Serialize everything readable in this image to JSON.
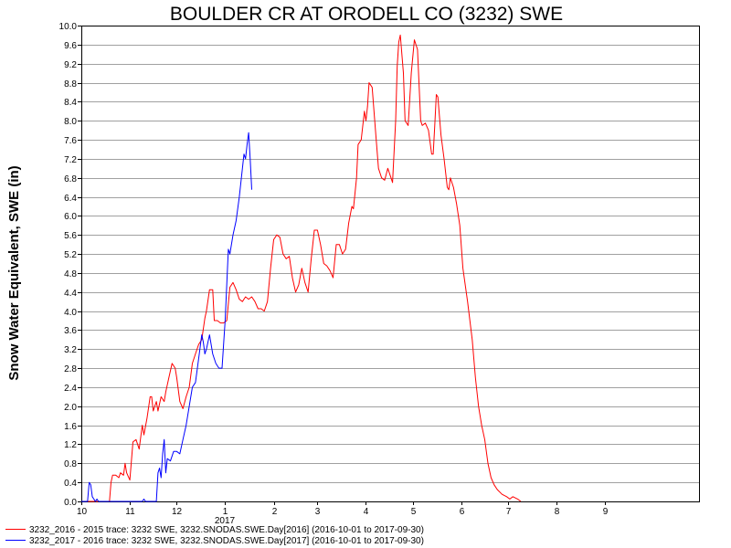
{
  "chart_data": {
    "type": "line",
    "title": "BOULDER CR AT ORODELL CO (3232) SWE",
    "ylabel": "Snow Water Equivalent, SWE (in)",
    "xlabel": "",
    "ylim": [
      0,
      10.0
    ],
    "yticks": [
      "0.0",
      "0.4",
      "0.8",
      "1.2",
      "1.6",
      "2.0",
      "2.4",
      "2.8",
      "3.2",
      "3.6",
      "4.0",
      "4.4",
      "4.8",
      "5.2",
      "5.6",
      "6.0",
      "6.4",
      "6.8",
      "7.2",
      "7.6",
      "8.0",
      "8.4",
      "8.8",
      "9.2",
      "9.6",
      "10.0"
    ],
    "xlim": [
      "2016-10-01",
      "2017-10-31"
    ],
    "xticks": [
      {
        "date": "2016-10-01",
        "label": "10"
      },
      {
        "date": "2016-11-01",
        "label": "11"
      },
      {
        "date": "2016-12-01",
        "label": "12"
      },
      {
        "date": "2017-01-01",
        "label": "1"
      },
      {
        "date": "2017-02-01",
        "label": "2"
      },
      {
        "date": "2017-03-01",
        "label": "3"
      },
      {
        "date": "2017-04-01",
        "label": "4"
      },
      {
        "date": "2017-05-01",
        "label": "5"
      },
      {
        "date": "2017-06-01",
        "label": "6"
      },
      {
        "date": "2017-07-01",
        "label": "7"
      },
      {
        "date": "2017-08-01",
        "label": "8"
      },
      {
        "date": "2017-09-01",
        "label": "9"
      }
    ],
    "year_label": {
      "date": "2017-01-01",
      "text": "2017"
    },
    "grid": true,
    "legend_position": "bottom-left",
    "series": [
      {
        "name": "3232_2016 - 2015 trace: 3232 SWE, 3232.SNODAS.SWE.Day[2016] (2016-10-01 to 2017-09-30)",
        "color": "#ff0000",
        "points": [
          [
            "2016-10-01",
            0.0
          ],
          [
            "2016-10-19",
            0.0
          ],
          [
            "2016-10-20",
            0.4
          ],
          [
            "2016-10-21",
            0.55
          ],
          [
            "2016-10-23",
            0.55
          ],
          [
            "2016-10-25",
            0.5
          ],
          [
            "2016-10-26",
            0.6
          ],
          [
            "2016-10-28",
            0.55
          ],
          [
            "2016-10-29",
            0.8
          ],
          [
            "2016-10-30",
            0.6
          ],
          [
            "2016-11-01",
            0.45
          ],
          [
            "2016-11-03",
            1.25
          ],
          [
            "2016-11-05",
            1.3
          ],
          [
            "2016-11-07",
            1.1
          ],
          [
            "2016-11-09",
            1.6
          ],
          [
            "2016-11-10",
            1.4
          ],
          [
            "2016-11-12",
            1.75
          ],
          [
            "2016-11-14",
            2.2
          ],
          [
            "2016-11-15",
            2.2
          ],
          [
            "2016-11-16",
            1.9
          ],
          [
            "2016-11-18",
            2.1
          ],
          [
            "2016-11-19",
            1.9
          ],
          [
            "2016-11-21",
            2.2
          ],
          [
            "2016-11-23",
            2.1
          ],
          [
            "2016-11-24",
            2.3
          ],
          [
            "2016-11-26",
            2.6
          ],
          [
            "2016-11-28",
            2.9
          ],
          [
            "2016-11-30",
            2.8
          ],
          [
            "2016-12-01",
            2.6
          ],
          [
            "2016-12-03",
            2.1
          ],
          [
            "2016-12-05",
            1.95
          ],
          [
            "2016-12-07",
            2.2
          ],
          [
            "2016-12-09",
            2.4
          ],
          [
            "2016-12-11",
            2.9
          ],
          [
            "2016-12-13",
            3.1
          ],
          [
            "2016-12-15",
            3.3
          ],
          [
            "2016-12-17",
            3.4
          ],
          [
            "2016-12-19",
            3.85
          ],
          [
            "2016-12-20",
            4.0
          ],
          [
            "2016-12-22",
            4.45
          ],
          [
            "2016-12-24",
            4.45
          ],
          [
            "2016-12-25",
            3.8
          ],
          [
            "2016-12-27",
            3.8
          ],
          [
            "2016-12-29",
            3.75
          ],
          [
            "2016-12-31",
            3.75
          ],
          [
            "2017-01-02",
            3.8
          ],
          [
            "2017-01-04",
            4.5
          ],
          [
            "2017-01-06",
            4.6
          ],
          [
            "2017-01-08",
            4.45
          ],
          [
            "2017-01-10",
            4.25
          ],
          [
            "2017-01-12",
            4.2
          ],
          [
            "2017-01-14",
            4.3
          ],
          [
            "2017-01-16",
            4.25
          ],
          [
            "2017-01-18",
            4.3
          ],
          [
            "2017-01-20",
            4.2
          ],
          [
            "2017-01-22",
            4.05
          ],
          [
            "2017-01-24",
            4.05
          ],
          [
            "2017-01-26",
            4.0
          ],
          [
            "2017-01-28",
            4.2
          ],
          [
            "2017-01-30",
            4.9
          ],
          [
            "2017-02-01",
            5.5
          ],
          [
            "2017-02-03",
            5.6
          ],
          [
            "2017-02-05",
            5.55
          ],
          [
            "2017-02-07",
            5.2
          ],
          [
            "2017-02-09",
            5.1
          ],
          [
            "2017-02-11",
            5.15
          ],
          [
            "2017-02-13",
            4.7
          ],
          [
            "2017-02-15",
            4.4
          ],
          [
            "2017-02-17",
            4.55
          ],
          [
            "2017-02-19",
            4.9
          ],
          [
            "2017-02-21",
            4.6
          ],
          [
            "2017-02-23",
            4.4
          ],
          [
            "2017-02-25",
            5.1
          ],
          [
            "2017-02-27",
            5.7
          ],
          [
            "2017-03-01",
            5.7
          ],
          [
            "2017-03-03",
            5.4
          ],
          [
            "2017-03-05",
            5.0
          ],
          [
            "2017-03-07",
            4.95
          ],
          [
            "2017-03-09",
            4.85
          ],
          [
            "2017-03-11",
            4.7
          ],
          [
            "2017-03-13",
            5.4
          ],
          [
            "2017-03-15",
            5.4
          ],
          [
            "2017-03-17",
            5.2
          ],
          [
            "2017-03-19",
            5.3
          ],
          [
            "2017-03-21",
            5.85
          ],
          [
            "2017-03-23",
            6.2
          ],
          [
            "2017-03-24",
            6.15
          ],
          [
            "2017-03-26",
            6.8
          ],
          [
            "2017-03-27",
            7.5
          ],
          [
            "2017-03-29",
            7.6
          ],
          [
            "2017-03-31",
            8.2
          ],
          [
            "2017-04-01",
            8.0
          ],
          [
            "2017-04-02",
            8.3
          ],
          [
            "2017-04-03",
            8.8
          ],
          [
            "2017-04-05",
            8.7
          ],
          [
            "2017-04-07",
            7.85
          ],
          [
            "2017-04-09",
            7.0
          ],
          [
            "2017-04-11",
            6.8
          ],
          [
            "2017-04-13",
            6.75
          ],
          [
            "2017-04-15",
            7.0
          ],
          [
            "2017-04-17",
            6.8
          ],
          [
            "2017-04-18",
            6.7
          ],
          [
            "2017-04-20",
            8.0
          ],
          [
            "2017-04-21",
            9.15
          ],
          [
            "2017-04-22",
            9.65
          ],
          [
            "2017-04-23",
            9.8
          ],
          [
            "2017-04-25",
            9.0
          ],
          [
            "2017-04-26",
            8.0
          ],
          [
            "2017-04-28",
            7.9
          ],
          [
            "2017-04-30",
            9.0
          ],
          [
            "2017-05-02",
            9.7
          ],
          [
            "2017-05-04",
            9.5
          ],
          [
            "2017-05-06",
            8.0
          ],
          [
            "2017-05-07",
            7.9
          ],
          [
            "2017-05-09",
            7.95
          ],
          [
            "2017-05-11",
            7.8
          ],
          [
            "2017-05-13",
            7.3
          ],
          [
            "2017-05-14",
            7.3
          ],
          [
            "2017-05-15",
            7.9
          ],
          [
            "2017-05-16",
            8.55
          ],
          [
            "2017-05-17",
            8.5
          ],
          [
            "2017-05-19",
            7.7
          ],
          [
            "2017-05-21",
            7.2
          ],
          [
            "2017-05-23",
            6.6
          ],
          [
            "2017-05-24",
            6.55
          ],
          [
            "2017-05-25",
            6.8
          ],
          [
            "2017-05-27",
            6.6
          ],
          [
            "2017-05-29",
            6.25
          ],
          [
            "2017-05-31",
            5.8
          ],
          [
            "2017-06-02",
            4.9
          ],
          [
            "2017-06-05",
            4.2
          ],
          [
            "2017-06-08",
            3.4
          ],
          [
            "2017-06-10",
            2.6
          ],
          [
            "2017-06-12",
            2.0
          ],
          [
            "2017-06-14",
            1.6
          ],
          [
            "2017-06-16",
            1.3
          ],
          [
            "2017-06-18",
            0.8
          ],
          [
            "2017-06-20",
            0.5
          ],
          [
            "2017-06-22",
            0.35
          ],
          [
            "2017-06-24",
            0.25
          ],
          [
            "2017-06-27",
            0.15
          ],
          [
            "2017-06-30",
            0.1
          ],
          [
            "2017-07-02",
            0.05
          ],
          [
            "2017-07-04",
            0.1
          ],
          [
            "2017-07-07",
            0.05
          ],
          [
            "2017-07-09",
            0.0
          ]
        ]
      },
      {
        "name": "3232_2017 - 2016 trace: 3232 SWE, 3232.SNODAS.SWE.Day[2017] (2016-10-01 to 2017-09-30)",
        "color": "#0000ff",
        "points": [
          [
            "2016-10-01",
            0.0
          ],
          [
            "2016-10-05",
            0.0
          ],
          [
            "2016-10-06",
            0.4
          ],
          [
            "2016-10-07",
            0.35
          ],
          [
            "2016-10-08",
            0.1
          ],
          [
            "2016-10-09",
            0.05
          ],
          [
            "2016-10-10",
            0.0
          ],
          [
            "2016-10-11",
            0.05
          ],
          [
            "2016-10-12",
            0.0
          ],
          [
            "2016-10-14",
            0.0
          ],
          [
            "2016-11-09",
            0.0
          ],
          [
            "2016-11-10",
            0.05
          ],
          [
            "2016-11-11",
            0.0
          ],
          [
            "2016-11-18",
            0.0
          ],
          [
            "2016-11-19",
            0.6
          ],
          [
            "2016-11-20",
            0.7
          ],
          [
            "2016-11-21",
            0.5
          ],
          [
            "2016-11-22",
            1.0
          ],
          [
            "2016-11-23",
            1.3
          ],
          [
            "2016-11-24",
            0.6
          ],
          [
            "2016-11-25",
            0.9
          ],
          [
            "2016-11-27",
            0.85
          ],
          [
            "2016-11-29",
            1.05
          ],
          [
            "2016-12-01",
            1.05
          ],
          [
            "2016-12-03",
            1.0
          ],
          [
            "2016-12-05",
            1.3
          ],
          [
            "2016-12-07",
            1.6
          ],
          [
            "2016-12-09",
            2.0
          ],
          [
            "2016-12-11",
            2.4
          ],
          [
            "2016-12-13",
            2.5
          ],
          [
            "2016-12-15",
            3.0
          ],
          [
            "2016-12-17",
            3.5
          ],
          [
            "2016-12-18",
            3.35
          ],
          [
            "2016-12-19",
            3.1
          ],
          [
            "2016-12-20",
            3.2
          ],
          [
            "2016-12-22",
            3.5
          ],
          [
            "2016-12-24",
            3.1
          ],
          [
            "2016-12-26",
            2.9
          ],
          [
            "2016-12-28",
            2.8
          ],
          [
            "2016-12-30",
            2.8
          ],
          [
            "2017-01-01",
            3.8
          ],
          [
            "2017-01-03",
            5.3
          ],
          [
            "2017-01-04",
            5.2
          ],
          [
            "2017-01-06",
            5.6
          ],
          [
            "2017-01-08",
            5.9
          ],
          [
            "2017-01-10",
            6.4
          ],
          [
            "2017-01-12",
            7.0
          ],
          [
            "2017-01-13",
            7.3
          ],
          [
            "2017-01-14",
            7.2
          ],
          [
            "2017-01-15",
            7.5
          ],
          [
            "2017-01-16",
            7.75
          ],
          [
            "2017-01-17",
            7.2
          ],
          [
            "2017-01-18",
            6.55
          ]
        ]
      }
    ]
  }
}
